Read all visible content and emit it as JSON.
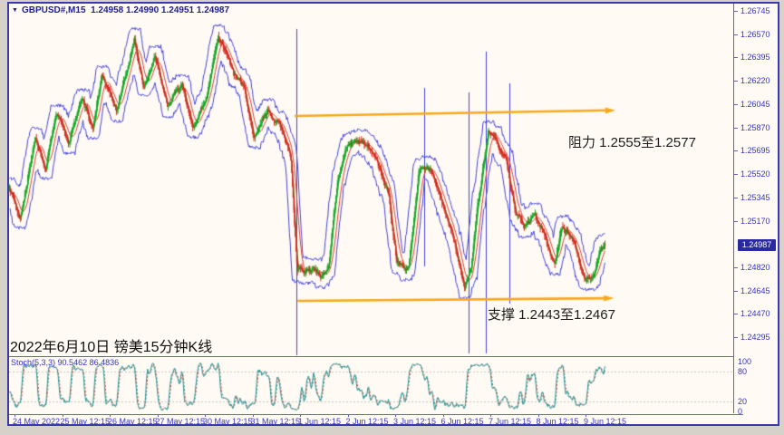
{
  "window": {
    "symbol": "GBPUSD#,M15",
    "quotes": "1.24958 1.24990 1.24951 1.24987"
  },
  "colors": {
    "background": "#fffaf4",
    "frame": "#6262d0",
    "axis_text": "#3434c8",
    "candle_up": "#0faa22",
    "candle_down": "#d8281e",
    "band": "#4343dd",
    "ma_fast": "#18a01c",
    "ma_slow": "#e03b30",
    "stoch_k": "#1b9a9a",
    "stoch_d": "#d23b30",
    "trendline": "#f7a81d",
    "badge_bg": "#2a2aa0",
    "level_dotted": "#c9c5bc"
  },
  "chart_data": {
    "type": "candlestick",
    "symbol": "GBPUSD#",
    "timeframe": "M15",
    "ohlc_readout": {
      "open": "1.24958",
      "high": "1.24990",
      "low": "1.24951",
      "close": "1.24987"
    },
    "y_axis": {
      "ticks": [
        "1.26745",
        "1.26570",
        "1.26395",
        "1.26220",
        "1.26045",
        "1.25870",
        "1.25695",
        "1.25520",
        "1.25345",
        "1.25170",
        "1.24820",
        "1.24645",
        "1.24470",
        "1.24295"
      ],
      "current_price": "1.24987",
      "range": [
        1.2414,
        1.2678
      ],
      "grid": false
    },
    "x_axis": {
      "labels": [
        "24 May 2022",
        "25 May 12:15",
        "26 May 12:15",
        "27 May 12:15",
        "30 May 12:15",
        "31 May 12:15",
        "1 Jun 12:15",
        "2 Jun 12:15",
        "3 Jun 12:15",
        "6 Jun 12:15",
        "7 Jun 12:15",
        "8 Jun 12:15",
        "9 Jun 12:15"
      ]
    },
    "price_path_keypoints": [
      {
        "t": 0.0,
        "p": 1.25419
      },
      {
        "t": 0.018,
        "p": 1.2518
      },
      {
        "t": 0.043,
        "p": 1.25793
      },
      {
        "t": 0.061,
        "p": 1.25555
      },
      {
        "t": 0.079,
        "p": 1.25997
      },
      {
        "t": 0.099,
        "p": 1.25759
      },
      {
        "t": 0.122,
        "p": 1.26099
      },
      {
        "t": 0.14,
        "p": 1.25861
      },
      {
        "t": 0.155,
        "p": 1.26269
      },
      {
        "t": 0.18,
        "p": 1.25997
      },
      {
        "t": 0.21,
        "p": 1.26527
      },
      {
        "t": 0.225,
        "p": 1.26167
      },
      {
        "t": 0.244,
        "p": 1.26405
      },
      {
        "t": 0.266,
        "p": 1.26031
      },
      {
        "t": 0.289,
        "p": 1.26201
      },
      {
        "t": 0.309,
        "p": 1.25861
      },
      {
        "t": 0.332,
        "p": 1.26133
      },
      {
        "t": 0.35,
        "p": 1.26555
      },
      {
        "t": 0.373,
        "p": 1.26303
      },
      {
        "t": 0.393,
        "p": 1.26167
      },
      {
        "t": 0.411,
        "p": 1.25793
      },
      {
        "t": 0.434,
        "p": 1.25997
      },
      {
        "t": 0.454,
        "p": 1.25895
      },
      {
        "t": 0.472,
        "p": 1.25657
      },
      {
        "t": 0.483,
        "p": 1.24806
      },
      {
        "t": 0.495,
        "p": 1.24772
      },
      {
        "t": 0.51,
        "p": 1.2482
      },
      {
        "t": 0.525,
        "p": 1.24738
      },
      {
        "t": 0.536,
        "p": 1.24854
      },
      {
        "t": 0.551,
        "p": 1.25453
      },
      {
        "t": 0.566,
        "p": 1.25738
      },
      {
        "t": 0.586,
        "p": 1.25779
      },
      {
        "t": 0.601,
        "p": 1.25752
      },
      {
        "t": 0.616,
        "p": 1.25623
      },
      {
        "t": 0.636,
        "p": 1.25385
      },
      {
        "t": 0.65,
        "p": 1.24854
      },
      {
        "t": 0.67,
        "p": 1.24813
      },
      {
        "t": 0.688,
        "p": 1.25575
      },
      {
        "t": 0.708,
        "p": 1.25548
      },
      {
        "t": 0.728,
        "p": 1.25282
      },
      {
        "t": 0.746,
        "p": 1.25024
      },
      {
        "t": 0.764,
        "p": 1.24663
      },
      {
        "t": 0.776,
        "p": 1.2484
      },
      {
        "t": 0.785,
        "p": 1.25235
      },
      {
        "t": 0.804,
        "p": 1.25861
      },
      {
        "t": 0.819,
        "p": 1.25752
      },
      {
        "t": 0.834,
        "p": 1.25616
      },
      {
        "t": 0.849,
        "p": 1.25248
      },
      {
        "t": 0.865,
        "p": 1.25112
      },
      {
        "t": 0.883,
        "p": 1.25208
      },
      {
        "t": 0.898,
        "p": 1.25058
      },
      {
        "t": 0.916,
        "p": 1.2484
      },
      {
        "t": 0.928,
        "p": 1.2514
      },
      {
        "t": 0.947,
        "p": 1.25044
      },
      {
        "t": 0.966,
        "p": 1.24731
      },
      {
        "t": 0.982,
        "p": 1.24772
      },
      {
        "t": 0.992,
        "p": 1.24963
      },
      {
        "t": 1.0,
        "p": 1.24987
      }
    ],
    "gap_lines": [
      {
        "t": 0.482,
        "p1": 1.26609,
        "p2": 1.2416
      },
      {
        "t": 0.697,
        "p1": 1.26167,
        "p2": 1.24827
      },
      {
        "t": 0.772,
        "p1": 1.26133,
        "p2": 1.24174
      },
      {
        "t": 0.8,
        "p1": 1.26439,
        "p2": 1.24174
      },
      {
        "t": 0.84,
        "p1": 1.26201,
        "p2": 1.24548
      }
    ],
    "annotations": {
      "resistance": {
        "label": "阻力 1.2555至1.2577",
        "line": {
          "x1f": 0.389,
          "p1": 1.25956,
          "x2f": 0.821,
          "p2": 1.25998
        }
      },
      "support": {
        "label": "支撑 1.2443至1.2467",
        "line": {
          "x1f": 0.393,
          "p1": 1.24568,
          "x2f": 0.819,
          "p2": 1.24588
        }
      },
      "caption": "2022年6月10日 镑美15分钟K线"
    },
    "indicator": {
      "name": "Stoch(5,3,3)",
      "values": "90.5462 86.4836",
      "current_k": 90.5462,
      "current_d": 86.4836,
      "levels": [
        80,
        20
      ],
      "scale_labels": [
        100,
        80,
        20,
        0
      ],
      "range": [
        0,
        100
      ]
    }
  }
}
